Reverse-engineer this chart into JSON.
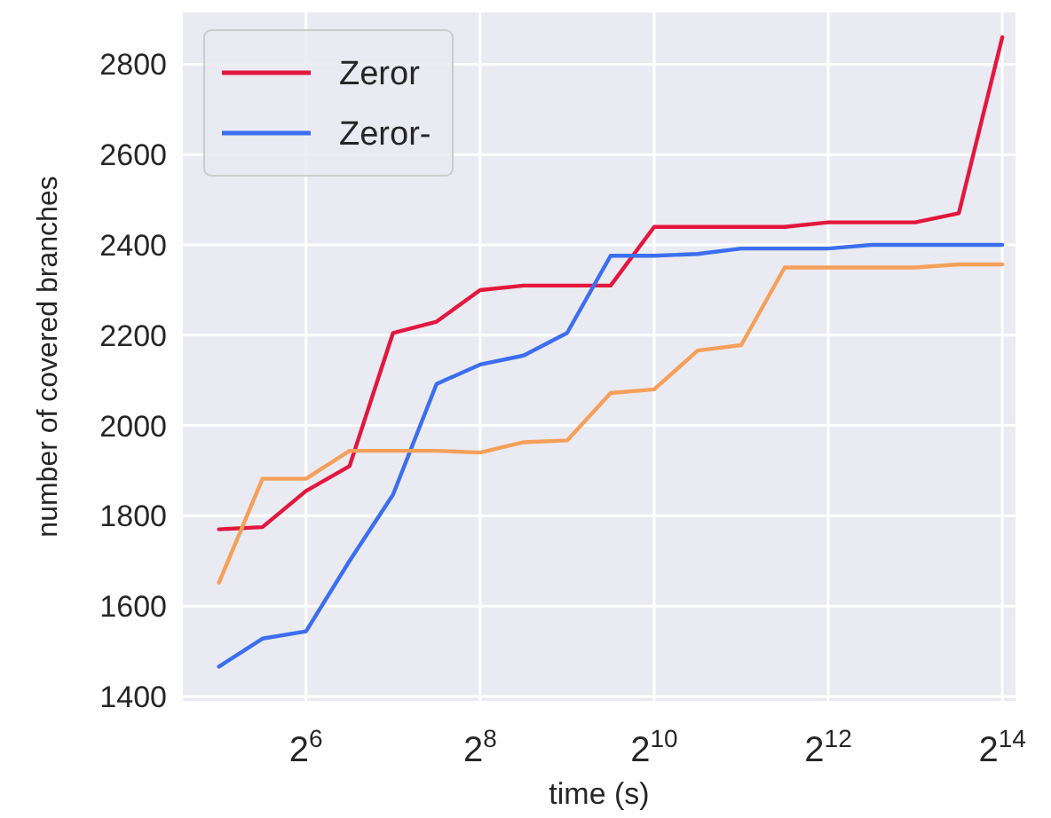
{
  "chart_data": {
    "type": "line",
    "xlabel": "time (s)",
    "ylabel": "number of covered branches",
    "log": "x",
    "grid": true,
    "legend": "top left",
    "line_style": "solid",
    "marker": "none",
    "x": [
      32,
      45.25,
      64,
      90.51,
      128,
      181.02,
      256,
      362.04,
      512,
      724.08,
      1024,
      1448.15,
      2048,
      2896.31,
      4096,
      5792.62,
      8192,
      11585.24,
      16384
    ],
    "xlim": [
      24,
      18200
    ],
    "xticks": [
      {
        "value": 64,
        "label": "2$^{6}$"
      },
      {
        "value": 256,
        "label": "2$^{8}$"
      },
      {
        "value": 1024,
        "label": "2$^{10}$"
      },
      {
        "value": 4096,
        "label": "2$^{12}$"
      },
      {
        "value": 16384,
        "label": "2$^{14}$"
      }
    ],
    "ylim": [
      1390,
      2915
    ],
    "yticks": [
      1400,
      1600,
      1800,
      2000,
      2200,
      2400,
      2600,
      2800
    ],
    "series": [
      {
        "name": "Zeror",
        "color": "#e3173e",
        "values": [
          1770,
          1775,
          1855,
          1910,
          2205,
          2230,
          2300,
          2310,
          2310,
          2310,
          2440,
          2440,
          2440,
          2440,
          2450,
          2450,
          2450,
          2470,
          2860
        ]
      },
      {
        "name": "Zeror-",
        "color": "#3c6ef0",
        "values": [
          1466,
          1528,
          1544,
          1700,
          1847,
          2092,
          2135,
          2155,
          2205,
          2376,
          2376,
          2380,
          2392,
          2392,
          2392,
          2400,
          2400,
          2400,
          2400
        ]
      },
      {
        "color": "#f5a05a",
        "values": [
          1652,
          1882,
          1882,
          1944,
          1944,
          1944,
          1940,
          1963,
          1967,
          2072,
          2080,
          2166,
          2178,
          2350,
          2350,
          2350,
          2350,
          2357,
          2357
        ]
      }
    ]
  }
}
